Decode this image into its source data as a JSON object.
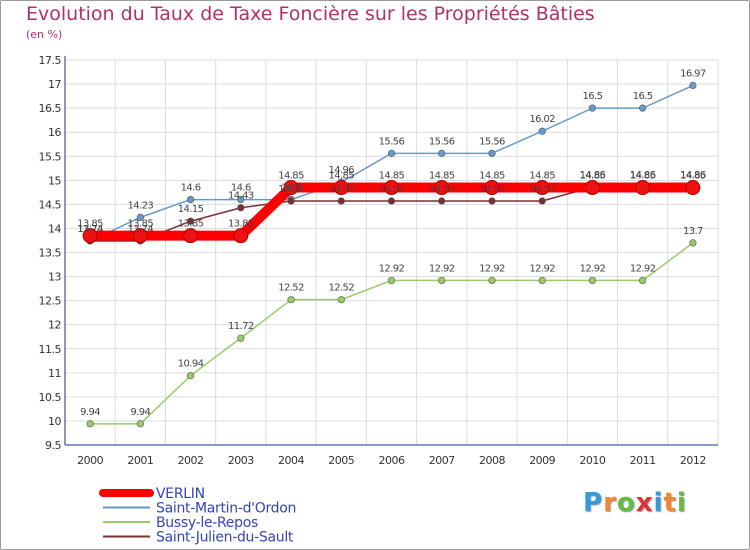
{
  "chart_data": {
    "type": "line",
    "title": "Evolution du Taux de Taxe Foncière sur les Propriétés Bâties",
    "ylabel": "(en %)",
    "xlabel": "",
    "x": [
      "2000",
      "2001",
      "2002",
      "2003",
      "2004",
      "2005",
      "2006",
      "2007",
      "2008",
      "2009",
      "2010",
      "2011",
      "2012"
    ],
    "ylim": [
      9.5,
      17.5
    ],
    "yticks": [
      "9.5",
      "10",
      "10.5",
      "11",
      "11.5",
      "12",
      "12.5",
      "13",
      "13.5",
      "14",
      "14.5",
      "15",
      "15.5",
      "16",
      "16.5",
      "17",
      "17.5"
    ],
    "grid": true,
    "legend_position": "bottom-left",
    "series": [
      {
        "name": "VERLIN",
        "color": "#ff0000",
        "values": [
          13.85,
          13.85,
          13.85,
          13.85,
          14.85,
          14.85,
          14.85,
          14.85,
          14.85,
          14.85,
          14.85,
          14.85,
          14.85
        ],
        "labels": [
          "13.85",
          "13.85",
          "13.85",
          "13.85",
          "14.85",
          "14.85",
          "14.85",
          "14.85",
          "14.85",
          "14.85",
          "14.85",
          "14.85",
          "14.85"
        ]
      },
      {
        "name": "Saint-Martin-d'Ordon",
        "color": "#6699cc",
        "values": [
          13.74,
          14.23,
          14.6,
          14.6,
          14.6,
          14.96,
          15.56,
          15.56,
          15.56,
          16.02,
          16.5,
          16.5,
          16.97
        ],
        "labels": [
          "13.74",
          "14.23",
          "14.6",
          "14.6",
          "14.6",
          "14.96",
          "15.56",
          "15.56",
          "15.56",
          "16.02",
          "16.5",
          "16.5",
          "16.97"
        ]
      },
      {
        "name": "Bussy-le-Repos",
        "color": "#99cc66",
        "values": [
          9.94,
          9.94,
          10.94,
          11.72,
          12.52,
          12.52,
          12.92,
          12.92,
          12.92,
          12.92,
          12.92,
          12.92,
          13.7
        ],
        "labels": [
          "9.94",
          "9.94",
          "10.94",
          "11.72",
          "12.52",
          "12.52",
          "12.92",
          "12.92",
          "12.92",
          "12.92",
          "12.92",
          "12.92",
          "13.7"
        ]
      },
      {
        "name": "Saint-Julien-du-Sault",
        "color": "#7a3030",
        "values": [
          13.74,
          13.74,
          14.15,
          14.43,
          14.57,
          14.57,
          14.57,
          14.57,
          14.57,
          14.57,
          14.86,
          14.86,
          14.86
        ],
        "labels": [
          "13.74",
          "13.74",
          "14.15",
          "14.43",
          "14.57",
          "14.57",
          "14.57",
          "14.57",
          "14.57",
          "14.57",
          "14.86",
          "14.86",
          "14.86"
        ]
      }
    ]
  },
  "brand": {
    "letters": [
      "P",
      "r",
      "o",
      "x",
      "i",
      "t",
      "i"
    ],
    "colors": [
      "#3399dd",
      "#ee8833",
      "#66bb44",
      "#dd3333",
      "#3399dd",
      "#ee8833",
      "#66bb44"
    ]
  }
}
